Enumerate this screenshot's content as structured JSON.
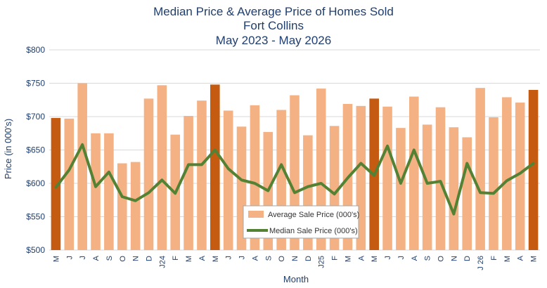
{
  "chart_data": {
    "type": "bar",
    "title_lines": [
      "Median Price & Average Price of Homes Sold",
      "Fort Collins",
      "May 2023 - May 2026"
    ],
    "xlabel": "Month",
    "ylabel": "Price (in 000's)",
    "ylim": [
      500,
      800
    ],
    "yticks": [
      500,
      550,
      600,
      650,
      700,
      750,
      800
    ],
    "ytick_labels": [
      "$500",
      "$550",
      "$600",
      "$650",
      "$700",
      "$750",
      "$800"
    ],
    "grid": true,
    "legend_position": "bottom-center",
    "categories": [
      "M",
      "J",
      "J",
      "A",
      "S",
      "O",
      "N",
      "D",
      "J24",
      "F",
      "M",
      "A",
      "M",
      "J",
      "J",
      "A",
      "S",
      "O",
      "N",
      "D",
      "J25",
      "F",
      "M",
      "A",
      "M",
      "J",
      "J",
      "A",
      "S",
      "O",
      "N",
      "D",
      "J 26",
      "F",
      "M",
      "A",
      "M"
    ],
    "series": [
      {
        "name": "Average Sale Price (000's)",
        "kind": "bar",
        "color": "#f4b183",
        "highlight_color": "#c55a11",
        "highlight_indices": [
          0,
          12,
          24,
          36
        ],
        "values": [
          698,
          697,
          750,
          675,
          675,
          630,
          632,
          727,
          747,
          673,
          701,
          724,
          748,
          709,
          685,
          717,
          677,
          710,
          732,
          672,
          742,
          686,
          719,
          716,
          727,
          715,
          683,
          730,
          688,
          714,
          684,
          669,
          743,
          699,
          729,
          721,
          740
        ]
      },
      {
        "name": "Median Sale Price (000's)",
        "kind": "line",
        "color": "#548235",
        "values": [
          594,
          620,
          658,
          595,
          617,
          580,
          574,
          586,
          605,
          585,
          628,
          628,
          650,
          622,
          605,
          600,
          589,
          628,
          586,
          595,
          600,
          584,
          608,
          630,
          612,
          656,
          600,
          650,
          600,
          603,
          554,
          630,
          586,
          585,
          604,
          615,
          630
        ]
      }
    ]
  }
}
